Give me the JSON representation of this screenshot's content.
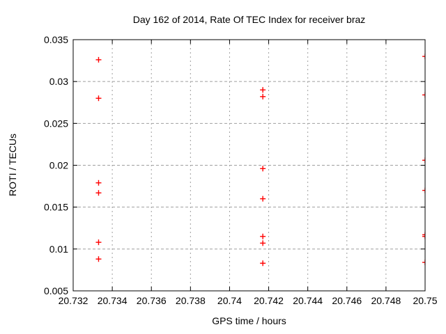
{
  "chart_data": {
    "type": "scatter",
    "title": "Day 162 of 2014, Rate Of TEC Index for receiver braz",
    "xlabel": "GPS time / hours",
    "ylabel": "ROTI / TECUs",
    "xlim": [
      20.732,
      20.75
    ],
    "ylim": [
      0.005,
      0.035
    ],
    "xticks": [
      20.732,
      20.734,
      20.736,
      20.738,
      20.74,
      20.742,
      20.744,
      20.746,
      20.748,
      20.75
    ],
    "xtick_labels": [
      "20.732",
      "20.734",
      "20.736",
      "20.738",
      "20.74",
      "20.742",
      "20.744",
      "20.746",
      "20.748",
      "20.75"
    ],
    "yticks": [
      0.005,
      0.01,
      0.015,
      0.02,
      0.025,
      0.03,
      0.035
    ],
    "ytick_labels": [
      "0.005",
      "0.01",
      "0.015",
      "0.02",
      "0.025",
      "0.03",
      "0.035"
    ],
    "grid": true,
    "legend_position": "none",
    "marker": "plus",
    "marker_color": "#ff0000",
    "series": [
      {
        "name": "ROTI",
        "points": [
          [
            20.7333,
            0.0326
          ],
          [
            20.7333,
            0.028
          ],
          [
            20.7333,
            0.0179
          ],
          [
            20.7333,
            0.0167
          ],
          [
            20.7333,
            0.0108
          ],
          [
            20.7333,
            0.0088
          ],
          [
            20.7417,
            0.029
          ],
          [
            20.7417,
            0.0282
          ],
          [
            20.7417,
            0.0196
          ],
          [
            20.7417,
            0.016
          ],
          [
            20.7417,
            0.0115
          ],
          [
            20.7417,
            0.0107
          ],
          [
            20.7417,
            0.0083
          ],
          [
            20.75,
            0.033
          ],
          [
            20.75,
            0.0284
          ],
          [
            20.75,
            0.0206
          ],
          [
            20.75,
            0.017
          ],
          [
            20.75,
            0.0117
          ],
          [
            20.75,
            0.0115
          ],
          [
            20.75,
            0.0084
          ]
        ]
      }
    ]
  }
}
